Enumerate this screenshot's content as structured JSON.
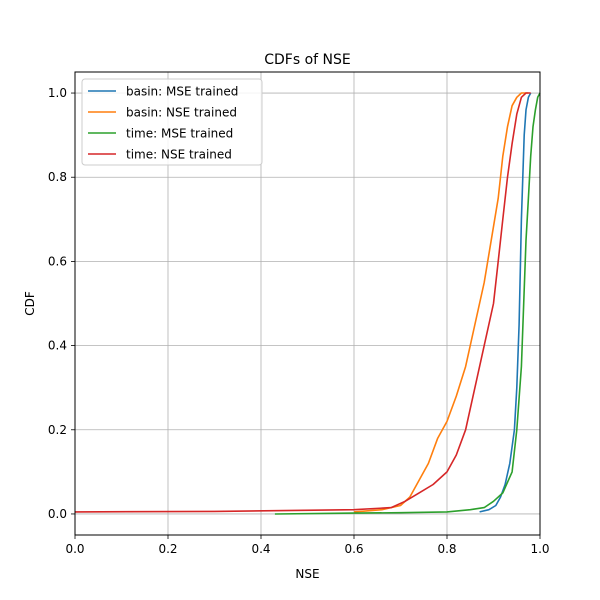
{
  "chart_data": {
    "type": "line",
    "title": "CDFs of NSE",
    "xlabel": "NSE",
    "ylabel": "CDF",
    "xlim": [
      0.0,
      1.0
    ],
    "ylim": [
      -0.05,
      1.05
    ],
    "xticks": [
      0.0,
      0.2,
      0.4,
      0.6,
      0.8,
      1.0
    ],
    "xtick_labels": [
      "0.0",
      "0.2",
      "0.4",
      "0.6",
      "0.8",
      "1.0"
    ],
    "yticks": [
      0.0,
      0.2,
      0.4,
      0.6,
      0.8,
      1.0
    ],
    "ytick_labels": [
      "0.0",
      "0.2",
      "0.4",
      "0.6",
      "0.8",
      "1.0"
    ],
    "grid": true,
    "legend_position": "upper-left",
    "series": [
      {
        "name": "basin: MSE trained",
        "color": "#1f77b4",
        "x": [
          0.87,
          0.89,
          0.905,
          0.915,
          0.925,
          0.935,
          0.945,
          0.95,
          0.955,
          0.958,
          0.96,
          0.963,
          0.966,
          0.97,
          0.975,
          0.98
        ],
        "y": [
          0.005,
          0.01,
          0.02,
          0.04,
          0.07,
          0.12,
          0.2,
          0.3,
          0.45,
          0.6,
          0.7,
          0.8,
          0.9,
          0.96,
          0.99,
          1.0
        ]
      },
      {
        "name": "basin: NSE trained",
        "color": "#ff7f0e",
        "x": [
          0.6,
          0.66,
          0.7,
          0.72,
          0.74,
          0.76,
          0.78,
          0.8,
          0.82,
          0.84,
          0.86,
          0.88,
          0.895,
          0.91,
          0.92,
          0.93,
          0.94,
          0.95,
          0.96,
          0.975
        ],
        "y": [
          0.005,
          0.01,
          0.02,
          0.04,
          0.08,
          0.12,
          0.18,
          0.22,
          0.28,
          0.35,
          0.45,
          0.55,
          0.65,
          0.75,
          0.85,
          0.92,
          0.97,
          0.99,
          1.0,
          1.0
        ]
      },
      {
        "name": "time: MSE trained",
        "color": "#2ca02c",
        "x": [
          0.43,
          0.6,
          0.7,
          0.8,
          0.85,
          0.88,
          0.9,
          0.92,
          0.94,
          0.95,
          0.96,
          0.965,
          0.97,
          0.975,
          0.98,
          0.985,
          0.99,
          0.995,
          1.0
        ],
        "y": [
          0.0,
          0.002,
          0.003,
          0.005,
          0.01,
          0.015,
          0.03,
          0.05,
          0.1,
          0.2,
          0.35,
          0.5,
          0.65,
          0.75,
          0.85,
          0.92,
          0.96,
          0.99,
          1.0
        ]
      },
      {
        "name": "time: NSE trained",
        "color": "#d62728",
        "x": [
          0.0,
          0.3,
          0.6,
          0.68,
          0.71,
          0.74,
          0.77,
          0.8,
          0.82,
          0.84,
          0.86,
          0.88,
          0.9,
          0.91,
          0.92,
          0.93,
          0.94,
          0.95,
          0.96,
          0.97,
          0.98
        ],
        "y": [
          0.005,
          0.006,
          0.01,
          0.015,
          0.03,
          0.05,
          0.07,
          0.1,
          0.14,
          0.2,
          0.3,
          0.4,
          0.5,
          0.6,
          0.7,
          0.8,
          0.88,
          0.95,
          0.99,
          1.0,
          1.0
        ]
      }
    ]
  }
}
